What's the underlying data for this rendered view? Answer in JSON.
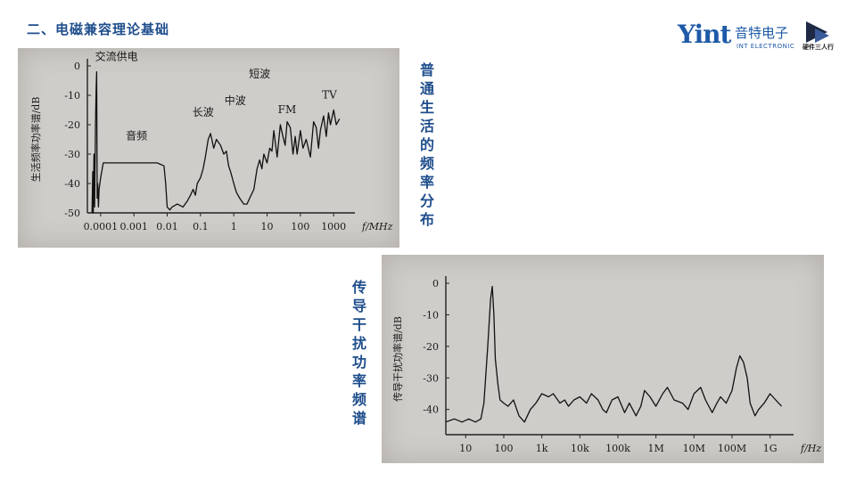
{
  "slide": {
    "title": "二、电磁兼容理论基础"
  },
  "logo": {
    "mark": "Yint",
    "cn": "音特电子",
    "en": "INT ELECTRONIC",
    "sub": "硬件三人行"
  },
  "captions": {
    "chart1": "普通生活的频率分布",
    "chart2": "传导干扰功率频谱"
  },
  "chart_data": [
    {
      "type": "line",
      "title": "",
      "xlabel": "f/MHz",
      "ylabel": "生活频率功率谱/dB",
      "x_scale": "log",
      "xlim": [
        4e-05,
        3000
      ],
      "ylim": [
        -50,
        0
      ],
      "x_ticks": [
        {
          "v": 0.0001,
          "label": "0.0001"
        },
        {
          "v": 0.001,
          "label": "0.001"
        },
        {
          "v": 0.01,
          "label": "0.01"
        },
        {
          "v": 0.1,
          "label": "0.1"
        },
        {
          "v": 1,
          "label": "1"
        },
        {
          "v": 10,
          "label": "10"
        },
        {
          "v": 100,
          "label": "100"
        },
        {
          "v": 1000,
          "label": "1000"
        }
      ],
      "y_ticks": [
        {
          "v": 0,
          "label": "0"
        },
        {
          "v": -10,
          "label": "-10"
        },
        {
          "v": -20,
          "label": "-20"
        },
        {
          "v": -30,
          "label": "-30"
        },
        {
          "v": -40,
          "label": "-40"
        },
        {
          "v": -50,
          "label": "-50"
        }
      ],
      "annotations": [
        {
          "x": 0.0003,
          "y": 2,
          "text": "交流供电"
        },
        {
          "x": 0.0012,
          "y": -25,
          "text": "音频"
        },
        {
          "x": 0.12,
          "y": -17,
          "text": "长波"
        },
        {
          "x": 1.1,
          "y": -13,
          "text": "中波"
        },
        {
          "x": 6,
          "y": -4,
          "text": "短波"
        },
        {
          "x": 40,
          "y": -16,
          "text": "FM"
        },
        {
          "x": 750,
          "y": -11,
          "text": "TV"
        }
      ],
      "series": [
        {
          "x": [
            5.5e-05,
            5.8e-05,
            6e-05,
            6.3e-05,
            6.6e-05,
            7e-05,
            7.3e-05,
            7.6e-05,
            7.9e-05,
            8.2e-05,
            8.6e-05,
            9e-05,
            0.0001,
            0.00012,
            0.0003,
            0.001,
            0.005,
            0.008,
            0.009,
            0.01,
            0.012,
            0.014,
            0.02,
            0.03,
            0.04,
            0.05,
            0.06,
            0.07,
            0.08,
            0.1,
            0.12,
            0.14,
            0.17,
            0.2,
            0.25,
            0.3,
            0.4,
            0.5,
            0.6,
            0.7,
            0.8,
            1,
            1.2,
            1.5,
            2,
            2.5,
            3,
            4,
            5,
            6,
            7,
            8,
            10,
            12,
            14,
            16,
            20,
            25,
            30,
            35,
            40,
            50,
            60,
            70,
            80,
            100,
            120,
            150,
            200,
            250,
            300,
            350,
            400,
            500,
            600,
            700,
            800,
            1000,
            1200,
            1500
          ],
          "y": [
            -50,
            -36,
            -50,
            -30,
            -48,
            -20,
            -8,
            -2,
            -45,
            -40,
            -48,
            -42,
            -38,
            -33,
            -33,
            -33,
            -33,
            -34,
            -40,
            -48,
            -49,
            -48,
            -47,
            -48,
            -46,
            -44,
            -42,
            -44,
            -40,
            -38,
            -35,
            -31,
            -25,
            -23,
            -28,
            -25,
            -27,
            -30,
            -29,
            -34,
            -36,
            -40,
            -43,
            -45,
            -47,
            -47,
            -45,
            -42,
            -35,
            -32,
            -35,
            -30,
            -33,
            -28,
            -29,
            -22,
            -31,
            -20,
            -24,
            -27,
            -19,
            -21,
            -30,
            -24,
            -30,
            -22,
            -28,
            -25,
            -31,
            -19,
            -21,
            -28,
            -22,
            -17,
            -24,
            -16,
            -20,
            -15,
            -20,
            -18
          ]
        }
      ]
    },
    {
      "type": "line",
      "title": "",
      "xlabel": "f/Hz",
      "ylabel": "传导干扰功率谱/dB",
      "x_scale": "log",
      "xlim": [
        3,
        3000000000
      ],
      "ylim": [
        -48,
        0
      ],
      "x_ticks": [
        {
          "v": 10,
          "label": "10"
        },
        {
          "v": 100,
          "label": "100"
        },
        {
          "v": 1000,
          "label": "1k"
        },
        {
          "v": 10000,
          "label": "10k"
        },
        {
          "v": 100000,
          "label": "100k"
        },
        {
          "v": 1000000,
          "label": "1M"
        },
        {
          "v": 10000000,
          "label": "10M"
        },
        {
          "v": 100000000,
          "label": "100M"
        },
        {
          "v": 1000000000,
          "label": "1G"
        }
      ],
      "y_ticks": [
        {
          "v": 0,
          "label": "0"
        },
        {
          "v": -10,
          "label": "-10"
        },
        {
          "v": -20,
          "label": "-20"
        },
        {
          "v": -30,
          "label": "-30"
        },
        {
          "v": -40,
          "label": "-40"
        }
      ],
      "series": [
        {
          "x": [
            3,
            5,
            8,
            12,
            18,
            25,
            30,
            38,
            45,
            50,
            55,
            60,
            70,
            80,
            100,
            130,
            180,
            250,
            350,
            500,
            700,
            1000,
            1500,
            2000,
            3000,
            4000,
            5000,
            7000,
            10000,
            15000,
            20000,
            30000,
            40000,
            50000,
            70000,
            100000,
            150000,
            200000,
            300000,
            400000,
            500000,
            700000,
            1000000,
            1500000,
            2000000,
            3000000,
            5000000,
            7000000,
            10000000,
            15000000,
            20000000,
            30000000,
            40000000,
            50000000,
            70000000,
            100000000,
            130000000,
            160000000,
            200000000,
            250000000,
            300000000,
            400000000,
            500000000,
            700000000,
            1000000000,
            1400000000,
            2000000000
          ],
          "y": [
            -44,
            -43,
            -44,
            -43,
            -44,
            -43,
            -38,
            -20,
            -5,
            -1,
            -10,
            -24,
            -32,
            -37,
            -38,
            -39,
            -37,
            -42,
            -44,
            -40,
            -38,
            -35,
            -36,
            -35,
            -38,
            -37,
            -39,
            -37,
            -36,
            -38,
            -35,
            -37,
            -40,
            -41,
            -37,
            -36,
            -41,
            -38,
            -42,
            -39,
            -34,
            -36,
            -39,
            -35,
            -33,
            -37,
            -38,
            -40,
            -35,
            -33,
            -37,
            -41,
            -38,
            -36,
            -38,
            -34,
            -27,
            -23,
            -25,
            -30,
            -38,
            -42,
            -40,
            -38,
            -35,
            -37,
            -39
          ]
        }
      ]
    }
  ]
}
